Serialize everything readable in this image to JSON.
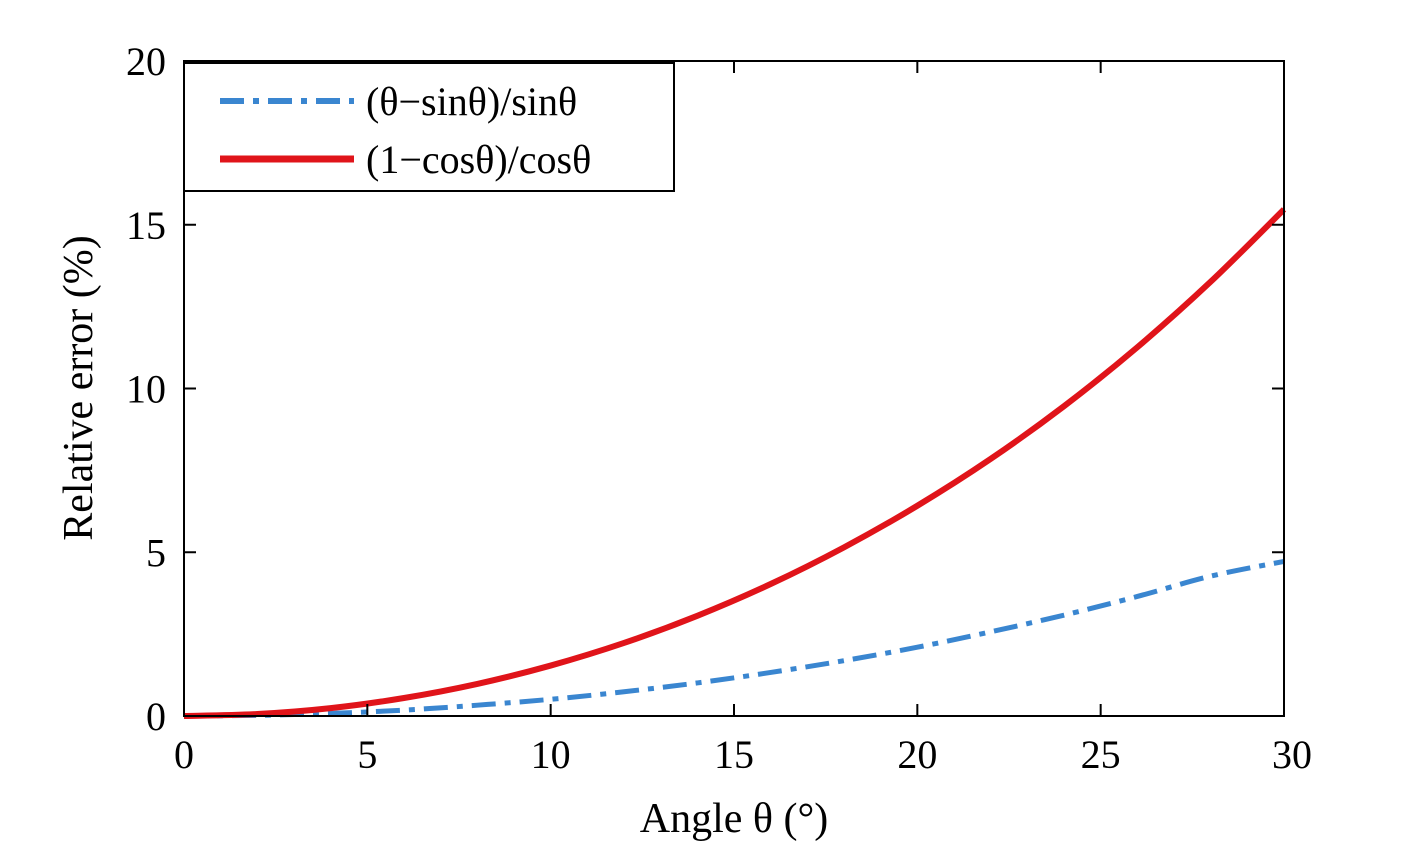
{
  "chart_data": {
    "type": "line",
    "xlabel": "Angle θ (°)",
    "ylabel": "Relative error (%)",
    "xlim": [
      0,
      30
    ],
    "ylim": [
      0,
      20
    ],
    "xticks": [
      0,
      5,
      10,
      15,
      20,
      25,
      30
    ],
    "yticks": [
      0,
      5,
      10,
      15,
      20
    ],
    "grid": false,
    "legend_position": "top-left",
    "x": [
      0,
      2,
      4,
      6,
      8,
      10,
      12,
      14,
      16,
      18,
      20,
      22,
      24,
      26,
      28,
      30
    ],
    "series": [
      {
        "name": "(θ−sinθ)/sinθ",
        "color": "#3a86d0",
        "line_style": "dash-dot",
        "values": [
          0,
          0.02,
          0.08,
          0.18,
          0.33,
          0.51,
          0.74,
          1.01,
          1.33,
          1.69,
          2.1,
          2.57,
          3.08,
          3.65,
          4.27,
          4.72
        ]
      },
      {
        "name": "(1−cosθ)/cosθ",
        "color": "#e0141a",
        "line_style": "solid",
        "values": [
          0,
          0.06,
          0.24,
          0.55,
          0.98,
          1.54,
          2.23,
          3.06,
          4.03,
          5.15,
          6.42,
          7.85,
          9.46,
          11.26,
          13.26,
          15.47
        ]
      }
    ]
  }
}
